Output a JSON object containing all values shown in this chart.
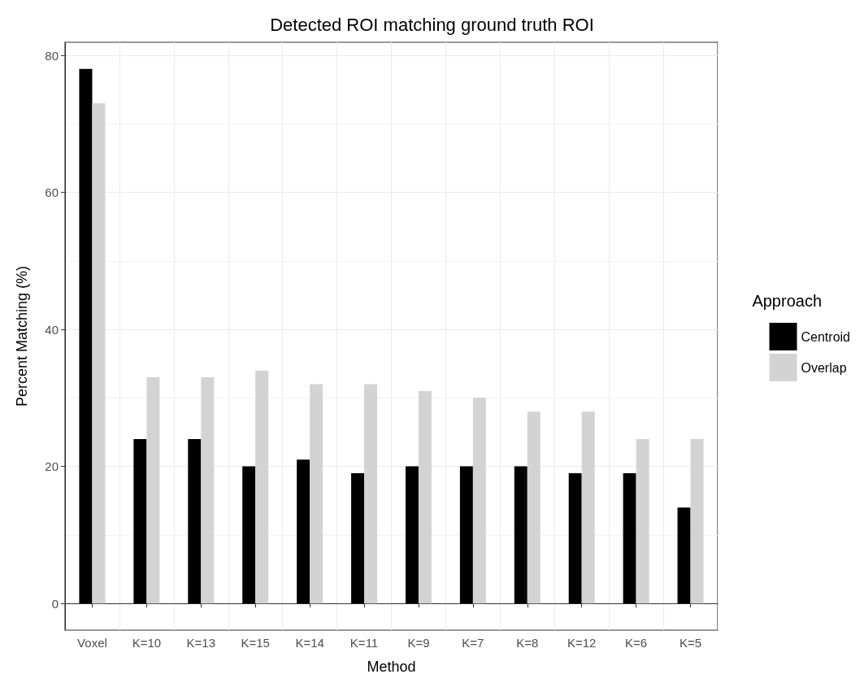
{
  "chart_data": {
    "type": "bar",
    "title": "Detected ROI matching ground truth ROI",
    "xlabel": "Method",
    "ylabel": "Percent Matching (%)",
    "legend_title": "Approach",
    "categories": [
      "Voxel",
      "K=10",
      "K=13",
      "K=15",
      "K=14",
      "K=11",
      "K=9",
      "K=7",
      "K=8",
      "K=12",
      "K=6",
      "K=5"
    ],
    "series": [
      {
        "name": "Centroid",
        "color": "#000000",
        "values": [
          78,
          24,
          24,
          20,
          21,
          19,
          20,
          20,
          20,
          19,
          19,
          14
        ]
      },
      {
        "name": "Overlap",
        "color": "#d3d3d3",
        "values": [
          73,
          33,
          33,
          34,
          32,
          32,
          31,
          30,
          28,
          28,
          24,
          24
        ]
      }
    ],
    "ylim": [
      -3.9,
      81.9
    ],
    "yticks": [
      0,
      20,
      40,
      60,
      80
    ],
    "grid": true,
    "legend": "right"
  }
}
